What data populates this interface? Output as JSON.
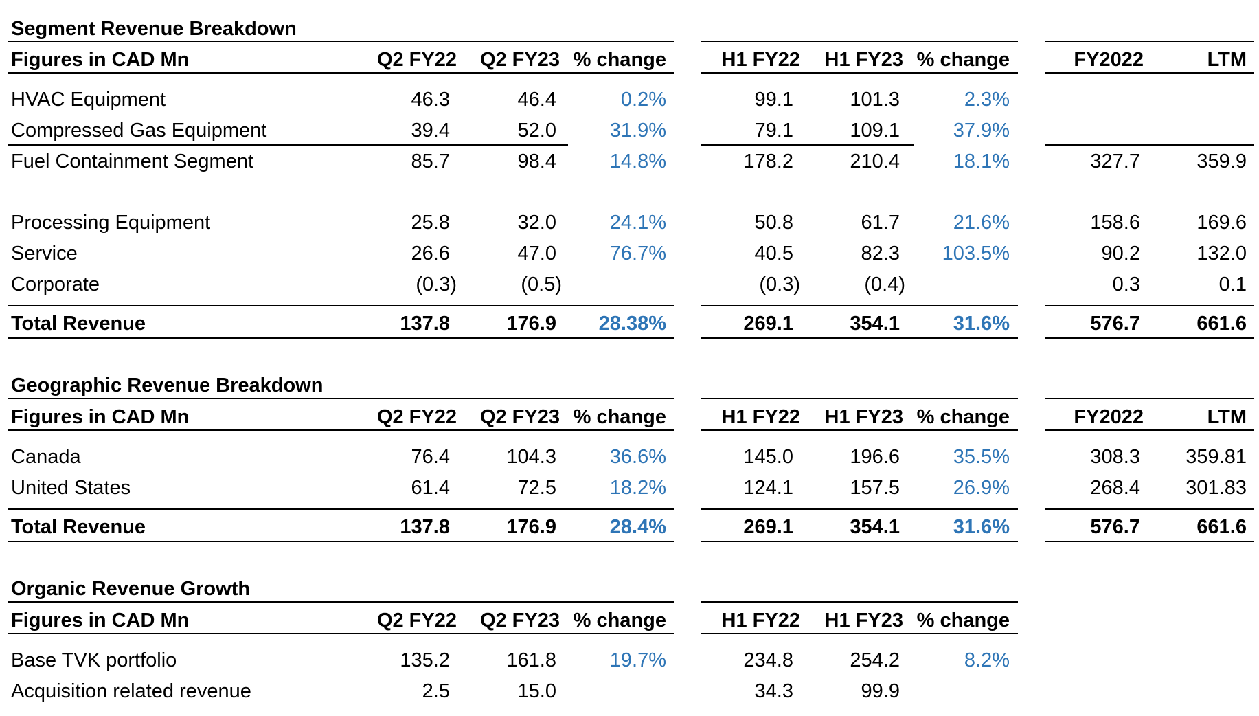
{
  "colors": {
    "text": "#000000",
    "percent_change": "#2e75b6",
    "rule": "#000000"
  },
  "segment": {
    "title": "Segment Revenue Breakdown",
    "header": {
      "label": "Figures in CAD Mn",
      "q1": "Q2 FY22",
      "q2": "Q2 FY23",
      "q_pct": "% change",
      "h1": "H1 FY22",
      "h2": "H1 FY23",
      "h_pct": "% change",
      "fy": "FY2022",
      "ltm": "LTM"
    },
    "rows": [
      {
        "label": "HVAC Equipment",
        "q1": "46.3",
        "q2": "46.4",
        "q_pct": "0.2%",
        "h1": "99.1",
        "h2": "101.3",
        "h_pct": "2.3%",
        "fy": "",
        "ltm": ""
      },
      {
        "label": "Compressed Gas Equipment",
        "q1": "39.4",
        "q2": "52.0",
        "q_pct": "31.9%",
        "h1": "79.1",
        "h2": "109.1",
        "h_pct": "37.9%",
        "fy": "",
        "ltm": ""
      },
      {
        "label": "Fuel Containment Segment",
        "q1": "85.7",
        "q2": "98.4",
        "q_pct": "14.8%",
        "h1": "178.2",
        "h2": "210.4",
        "h_pct": "18.1%",
        "fy": "327.7",
        "ltm": "359.9"
      },
      {
        "label": "Processing Equipment",
        "q1": "25.8",
        "q2": "32.0",
        "q_pct": "24.1%",
        "h1": "50.8",
        "h2": "61.7",
        "h_pct": "21.6%",
        "fy": "158.6",
        "ltm": "169.6"
      },
      {
        "label": "Service",
        "q1": "26.6",
        "q2": "47.0",
        "q_pct": "76.7%",
        "h1": "40.5",
        "h2": "82.3",
        "h_pct": "103.5%",
        "fy": "90.2",
        "ltm": "132.0"
      },
      {
        "label": "Corporate",
        "q1": "(0.3)",
        "q2": "(0.5)",
        "q_pct": "",
        "h1": "(0.3)",
        "h2": "(0.4)",
        "h_pct": "",
        "fy": "0.3",
        "ltm": "0.1"
      }
    ],
    "total": {
      "label": "Total Revenue",
      "q1": "137.8",
      "q2": "176.9",
      "q_pct": "28.38%",
      "h1": "269.1",
      "h2": "354.1",
      "h_pct": "31.6%",
      "fy": "576.7",
      "ltm": "661.6"
    }
  },
  "geographic": {
    "title": "Geographic Revenue Breakdown",
    "header": {
      "label": "Figures in CAD Mn",
      "q1": "Q2 FY22",
      "q2": "Q2 FY23",
      "q_pct": "% change",
      "h1": "H1 FY22",
      "h2": "H1 FY23",
      "h_pct": "% change",
      "fy": "FY2022",
      "ltm": "LTM"
    },
    "rows": [
      {
        "label": "Canada",
        "q1": "76.4",
        "q2": "104.3",
        "q_pct": "36.6%",
        "h1": "145.0",
        "h2": "196.6",
        "h_pct": "35.5%",
        "fy": "308.3",
        "ltm": "359.81"
      },
      {
        "label": "United States",
        "q1": "61.4",
        "q2": "72.5",
        "q_pct": "18.2%",
        "h1": "124.1",
        "h2": "157.5",
        "h_pct": "26.9%",
        "fy": "268.4",
        "ltm": "301.83"
      }
    ],
    "total": {
      "label": "Total Revenue",
      "q1": "137.8",
      "q2": "176.9",
      "q_pct": "28.4%",
      "h1": "269.1",
      "h2": "354.1",
      "h_pct": "31.6%",
      "fy": "576.7",
      "ltm": "661.6"
    }
  },
  "organic": {
    "title": "Organic Revenue Growth",
    "header": {
      "label": "Figures in CAD Mn",
      "q1": "Q2 FY22",
      "q2": "Q2 FY23",
      "q_pct": "% change",
      "h1": "H1 FY22",
      "h2": "H1 FY23",
      "h_pct": "% change"
    },
    "rows": [
      {
        "label": "Base TVK portfolio",
        "q1": "135.2",
        "q2": "161.8",
        "q_pct": "19.7%",
        "h1": "234.8",
        "h2": "254.2",
        "h_pct": "8.2%"
      },
      {
        "label": "Acquisition related revenue",
        "q1": "2.5",
        "q2": "15.0",
        "q_pct": "",
        "h1": "34.3",
        "h2": "99.9",
        "h_pct": ""
      }
    ]
  }
}
